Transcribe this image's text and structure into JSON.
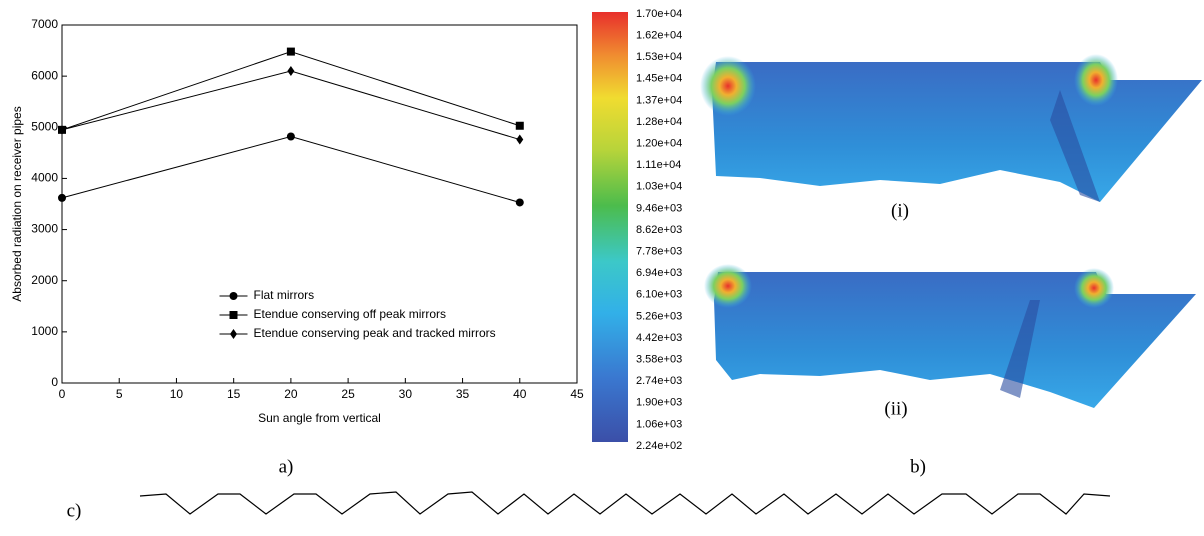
{
  "chart_data": {
    "type": "line",
    "x_label": "Sun angle from vertical",
    "y_label": "Absorbed radiation on receiver pipes",
    "x": [
      0,
      20,
      40
    ],
    "series": [
      {
        "name": "Flat mirrors",
        "color": "#000000",
        "marker": "circle",
        "values": [
          3620,
          4820,
          3530
        ]
      },
      {
        "name": "Etendue conserving off peak mirrors",
        "color": "#000000",
        "marker": "square",
        "values": [
          4950,
          6480,
          5030
        ]
      },
      {
        "name": "Etendue conserving peak and tracked mirrors",
        "color": "#000000",
        "marker": "diamond",
        "values": [
          4950,
          6100,
          4760
        ]
      }
    ],
    "xlim": [
      0,
      45
    ],
    "xticks": [
      0,
      5,
      10,
      15,
      20,
      25,
      30,
      35,
      40,
      45
    ],
    "ylim": [
      0,
      7000
    ],
    "yticks": [
      0,
      1000,
      2000,
      3000,
      4000,
      5000,
      6000,
      7000
    ],
    "legend": "lower center",
    "grid": false
  },
  "colorbar": {
    "labels": [
      "1.70e+04",
      "1.62e+04",
      "1.53e+04",
      "1.45e+04",
      "1.37e+04",
      "1.28e+04",
      "1.20e+04",
      "1.11e+04",
      "1.03e+04",
      "9.46e+03",
      "8.62e+03",
      "7.78e+03",
      "6.94e+03",
      "6.10e+03",
      "5.26e+03",
      "4.42e+03",
      "3.58e+03",
      "2.74e+03",
      "1.90e+03",
      "1.06e+03",
      "2.24e+02"
    ]
  },
  "panels": {
    "a": "a)",
    "b": "b)",
    "c": "c)",
    "i": "(i)",
    "ii": "(ii)"
  }
}
